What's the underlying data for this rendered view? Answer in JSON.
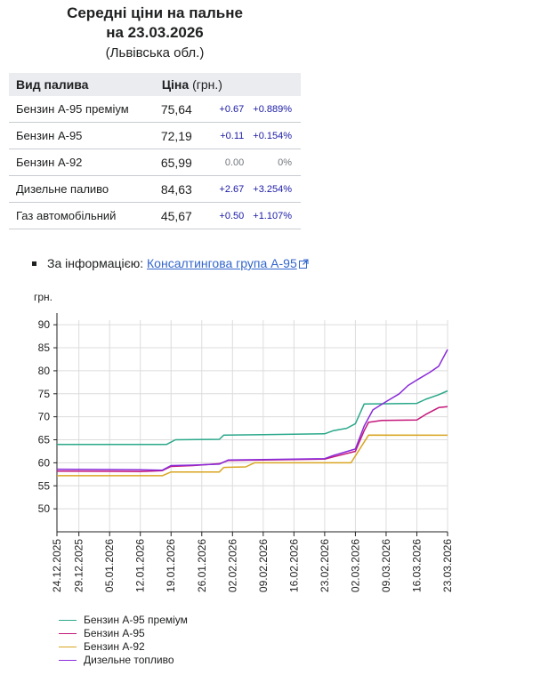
{
  "header": {
    "title_line1": "Середні ціни на пальне",
    "title_line2": "на 23.03.2026",
    "region": "(Львівська обл.)"
  },
  "table": {
    "col_fuel": "Вид палива",
    "col_price": "Ціна",
    "col_price_unit": "(грн.)",
    "rows": [
      {
        "name": "Бензин А-95 преміум",
        "price": "75,64",
        "abs": "+0.67",
        "rel": "+0.889%"
      },
      {
        "name": "Бензин А-95",
        "price": "72,19",
        "abs": "+0.11",
        "rel": "+0.154%"
      },
      {
        "name": "Бензин А-92",
        "price": "65,99",
        "abs": "0.00",
        "rel": "0%"
      },
      {
        "name": "Дизельне паливо",
        "price": "84,63",
        "abs": "+2.67",
        "rel": "+3.254%"
      },
      {
        "name": "Газ автомобільний",
        "price": "45,67",
        "abs": "+0.50",
        "rel": "+1.107%"
      }
    ]
  },
  "source": {
    "prefix": "За інформацією:",
    "link_text": "Консалтингова група А-95"
  },
  "chart_data": {
    "type": "line",
    "ylabel": "грн.",
    "ylim": [
      45,
      91
    ],
    "yticks": [
      50,
      55,
      60,
      65,
      70,
      75,
      80,
      85,
      90
    ],
    "x_start": "2025-12-24",
    "x_end": "2026-03-23",
    "xticks": [
      "24.12.2025",
      "29.12.2025",
      "05.01.2026",
      "12.01.2026",
      "19.01.2026",
      "26.01.2026",
      "02.02.2026",
      "09.02.2026",
      "16.02.2026",
      "23.02.2026",
      "02.03.2026",
      "09.03.2026",
      "16.03.2026",
      "23.03.2026"
    ],
    "grid": true,
    "legend_position": "bottom",
    "series": [
      {
        "name": "Бензин А-95 преміум",
        "color": "#2aa88a",
        "points": [
          [
            "2025-12-24",
            64.0
          ],
          [
            "2026-01-18",
            64.0
          ],
          [
            "2026-01-20",
            65.0
          ],
          [
            "2026-01-30",
            65.1
          ],
          [
            "2026-01-31",
            66.0
          ],
          [
            "2026-02-09",
            66.1
          ],
          [
            "2026-02-23",
            66.3
          ],
          [
            "2026-02-25",
            67.0
          ],
          [
            "2026-02-28",
            67.5
          ],
          [
            "2026-03-02",
            68.5
          ],
          [
            "2026-03-04",
            72.8
          ],
          [
            "2026-03-16",
            72.9
          ],
          [
            "2026-03-18",
            73.8
          ],
          [
            "2026-03-21",
            74.8
          ],
          [
            "2026-03-23",
            75.64
          ]
        ]
      },
      {
        "name": "Бензин А-95",
        "color": "#c4177a",
        "points": [
          [
            "2025-12-24",
            58.2
          ],
          [
            "2026-01-12",
            58.1
          ],
          [
            "2026-01-17",
            58.3
          ],
          [
            "2026-01-19",
            59.2
          ],
          [
            "2026-01-24",
            59.4
          ],
          [
            "2026-01-30",
            59.8
          ],
          [
            "2026-02-01",
            60.5
          ],
          [
            "2026-02-09",
            60.6
          ],
          [
            "2026-02-23",
            60.8
          ],
          [
            "2026-02-25",
            61.3
          ],
          [
            "2026-03-02",
            62.5
          ],
          [
            "2026-03-04",
            67.0
          ],
          [
            "2026-03-05",
            68.8
          ],
          [
            "2026-03-08",
            69.2
          ],
          [
            "2026-03-16",
            69.3
          ],
          [
            "2026-03-18",
            70.5
          ],
          [
            "2026-03-21",
            72.0
          ],
          [
            "2026-03-23",
            72.19
          ]
        ]
      },
      {
        "name": "Бензин А-92",
        "color": "#d9a521",
        "points": [
          [
            "2025-12-24",
            57.2
          ],
          [
            "2026-01-17",
            57.2
          ],
          [
            "2026-01-19",
            58.0
          ],
          [
            "2026-01-30",
            58.0
          ],
          [
            "2026-01-31",
            59.0
          ],
          [
            "2026-02-05",
            59.1
          ],
          [
            "2026-02-07",
            60.0
          ],
          [
            "2026-03-01",
            60.0
          ],
          [
            "2026-03-05",
            66.0
          ],
          [
            "2026-03-23",
            65.99
          ]
        ]
      },
      {
        "name": "Дизельне топливо",
        "color": "#8a2ad9",
        "points": [
          [
            "2025-12-24",
            58.6
          ],
          [
            "2026-01-12",
            58.5
          ],
          [
            "2026-01-17",
            58.4
          ],
          [
            "2026-01-19",
            59.4
          ],
          [
            "2026-01-24",
            59.5
          ],
          [
            "2026-01-30",
            59.7
          ],
          [
            "2026-02-01",
            60.6
          ],
          [
            "2026-02-09",
            60.7
          ],
          [
            "2026-02-23",
            60.9
          ],
          [
            "2026-02-25",
            61.6
          ],
          [
            "2026-03-02",
            63.0
          ],
          [
            "2026-03-04",
            68.0
          ],
          [
            "2026-03-06",
            71.5
          ],
          [
            "2026-03-09",
            73.3
          ],
          [
            "2026-03-12",
            75.0
          ],
          [
            "2026-03-14",
            76.8
          ],
          [
            "2026-03-16",
            78.0
          ],
          [
            "2026-03-19",
            79.7
          ],
          [
            "2026-03-21",
            81.0
          ],
          [
            "2026-03-23",
            84.63
          ]
        ]
      }
    ]
  }
}
